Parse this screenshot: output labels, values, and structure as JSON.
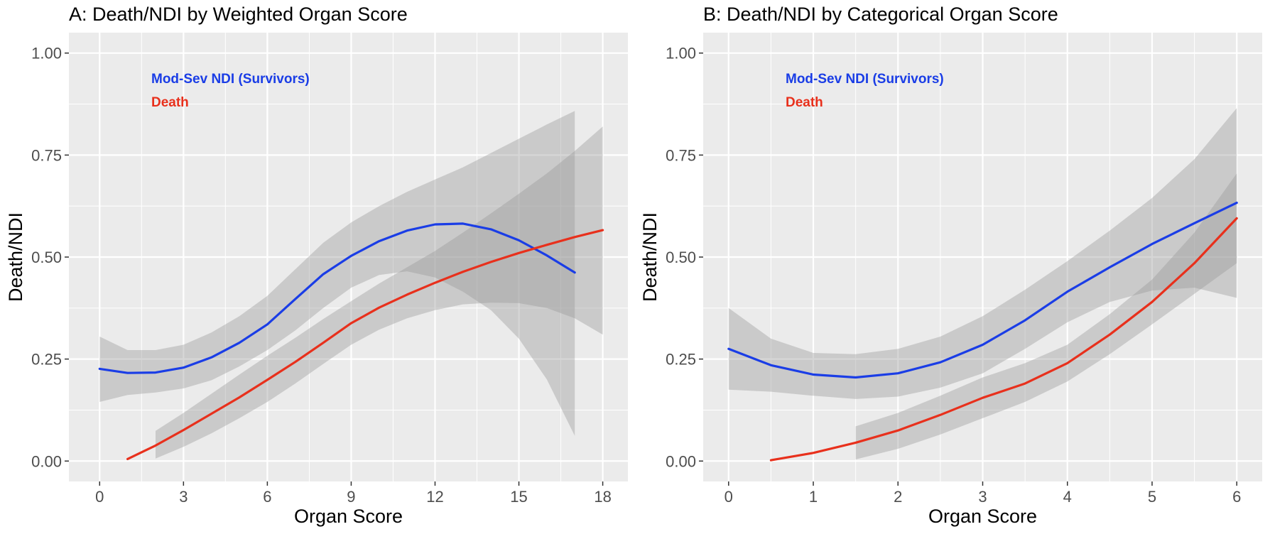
{
  "chart_data": [
    {
      "type": "line",
      "title": "A: Death/NDI by Weighted Organ Score",
      "xlabel": "Organ Score",
      "ylabel": "Death/NDI",
      "xlim": [
        -1.1,
        18.9
      ],
      "ylim": [
        -0.05,
        1.05
      ],
      "xticks": [
        0,
        3,
        6,
        9,
        12,
        15,
        18
      ],
      "xtick_labels": [
        "0",
        "3",
        "6",
        "9",
        "12",
        "15",
        "18"
      ],
      "yticks": [
        0,
        0.25,
        0.5,
        0.75,
        1
      ],
      "ytick_labels": [
        "0.00",
        "0.25",
        "0.50",
        "0.75",
        "1.00"
      ],
      "grid": true,
      "legend_position": "top-left",
      "series": [
        {
          "name": "Mod-Sev NDI (Survivors)",
          "color": "#1a3de6",
          "x": [
            0,
            1,
            2,
            3,
            4,
            5,
            6,
            7,
            8,
            9,
            10,
            11,
            12,
            13,
            14,
            15,
            16,
            17
          ],
          "y": [
            0.226,
            0.216,
            0.217,
            0.229,
            0.254,
            0.29,
            0.335,
            0.397,
            0.458,
            0.503,
            0.539,
            0.565,
            0.58,
            0.582,
            0.568,
            0.541,
            0.504,
            0.462
          ],
          "ci_lower": [
            0.145,
            0.162,
            0.168,
            0.178,
            0.198,
            0.232,
            0.272,
            0.32,
            0.375,
            0.425,
            0.456,
            0.465,
            0.45,
            0.415,
            0.37,
            0.3,
            0.2,
            0.062
          ],
          "ci_upper": [
            0.305,
            0.272,
            0.272,
            0.285,
            0.315,
            0.355,
            0.405,
            0.47,
            0.535,
            0.585,
            0.625,
            0.66,
            0.69,
            0.72,
            0.755,
            0.79,
            0.825,
            0.858
          ]
        },
        {
          "name": "Death",
          "color": "#e8301c",
          "x": [
            1,
            2,
            3,
            4,
            5,
            6,
            7,
            8,
            9,
            10,
            11,
            12,
            13,
            14,
            15,
            16,
            17,
            18
          ],
          "y": [
            0.005,
            0.038,
            0.076,
            0.116,
            0.156,
            0.199,
            0.243,
            0.29,
            0.338,
            0.376,
            0.408,
            0.437,
            0.464,
            0.488,
            0.51,
            0.53,
            0.549,
            0.566
          ],
          "ci_lower": [
            null,
            0.006,
            0.035,
            0.068,
            0.105,
            0.145,
            0.19,
            0.238,
            0.285,
            0.322,
            0.35,
            0.37,
            0.384,
            0.388,
            0.387,
            0.375,
            0.35,
            0.31
          ],
          "ci_upper": [
            null,
            0.074,
            0.118,
            0.165,
            0.212,
            0.258,
            0.302,
            0.348,
            0.392,
            0.435,
            0.475,
            0.515,
            0.56,
            0.607,
            0.655,
            0.705,
            0.76,
            0.82
          ]
        }
      ]
    },
    {
      "type": "line",
      "title": "B: Death/NDI by Categorical Organ Score",
      "xlabel": "Organ Score",
      "ylabel": "Death/NDI",
      "xlim": [
        -0.3,
        6.3
      ],
      "ylim": [
        -0.05,
        1.05
      ],
      "xticks": [
        0,
        1,
        2,
        3,
        4,
        5,
        6
      ],
      "xtick_labels": [
        "0",
        "1",
        "2",
        "3",
        "4",
        "5",
        "6"
      ],
      "yticks": [
        0,
        0.25,
        0.5,
        0.75,
        1
      ],
      "ytick_labels": [
        "0.00",
        "0.25",
        "0.50",
        "0.75",
        "1.00"
      ],
      "grid": true,
      "legend_position": "top-left",
      "series": [
        {
          "name": "Mod-Sev NDI (Survivors)",
          "color": "#1a3de6",
          "x": [
            0,
            0.5,
            1,
            1.5,
            2,
            2.5,
            3,
            3.5,
            4,
            4.5,
            5,
            5.5,
            6
          ],
          "y": [
            0.275,
            0.235,
            0.212,
            0.205,
            0.215,
            0.242,
            0.285,
            0.345,
            0.415,
            0.475,
            0.532,
            0.583,
            0.633
          ],
          "ci_lower": [
            0.175,
            0.17,
            0.16,
            0.152,
            0.158,
            0.18,
            0.215,
            0.275,
            0.34,
            0.39,
            0.418,
            0.425,
            0.4
          ],
          "ci_upper": [
            0.375,
            0.3,
            0.265,
            0.262,
            0.275,
            0.305,
            0.355,
            0.42,
            0.49,
            0.565,
            0.645,
            0.74,
            0.865
          ]
        },
        {
          "name": "Death",
          "color": "#e8301c",
          "x": [
            0.5,
            1,
            1.5,
            2,
            2.5,
            3,
            3.5,
            4,
            4.5,
            5,
            5.5,
            6
          ],
          "y": [
            0.002,
            0.02,
            0.045,
            0.075,
            0.113,
            0.155,
            0.19,
            0.24,
            0.31,
            0.39,
            0.485,
            0.595
          ],
          "ci_lower": [
            null,
            null,
            0.004,
            0.03,
            0.065,
            0.105,
            0.145,
            0.195,
            0.262,
            0.335,
            0.41,
            0.485
          ],
          "ci_upper": [
            null,
            null,
            0.085,
            0.118,
            0.16,
            0.205,
            0.24,
            0.285,
            0.36,
            0.445,
            0.56,
            0.705
          ]
        }
      ]
    }
  ]
}
